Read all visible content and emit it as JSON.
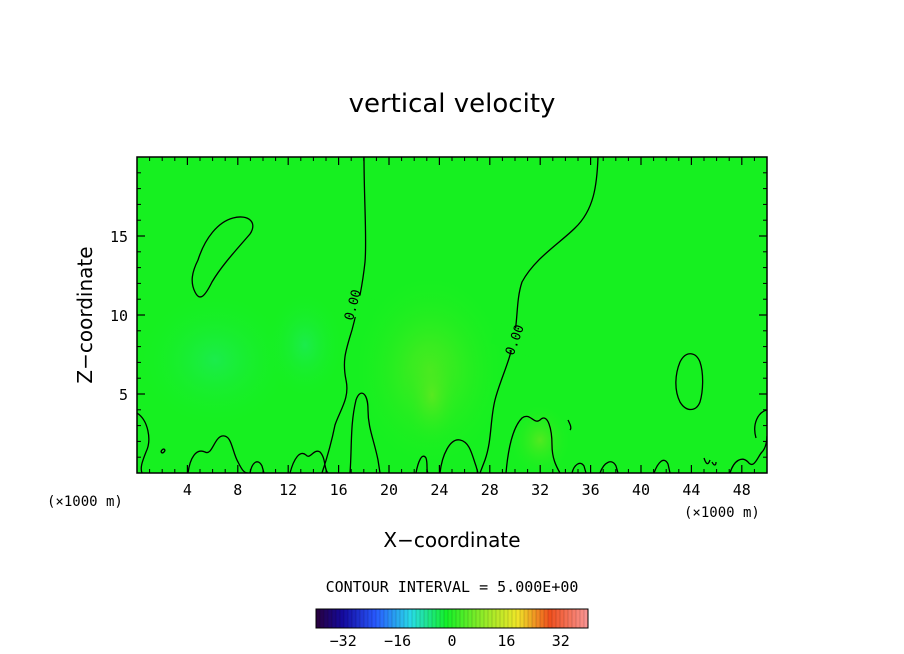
{
  "chart_data": {
    "type": "heatmap",
    "title": "vertical velocity",
    "xlabel": "X−coordinate",
    "ylabel": "Z−coordinate",
    "x_unit_left": "(×1000 m)",
    "x_unit_right": "(×1000 m)",
    "xlim": [
      0,
      50
    ],
    "ylim": [
      0,
      20
    ],
    "x_ticks": [
      4,
      8,
      12,
      16,
      20,
      24,
      28,
      32,
      36,
      40,
      44,
      48
    ],
    "y_ticks": [
      5,
      10,
      15
    ],
    "contour_interval_label": "CONTOUR INTERVAL =  5.000E+00",
    "contour_labels": [
      "0.00",
      "0.00"
    ],
    "colorbar": {
      "range": [
        -40,
        40
      ],
      "ticks": [
        -32,
        -16,
        0,
        16,
        32
      ],
      "tick_labels": [
        "−32",
        "−16",
        "0",
        "16",
        "32"
      ]
    },
    "grid": false,
    "background_field_value": 0,
    "field_color": "#16f020"
  }
}
